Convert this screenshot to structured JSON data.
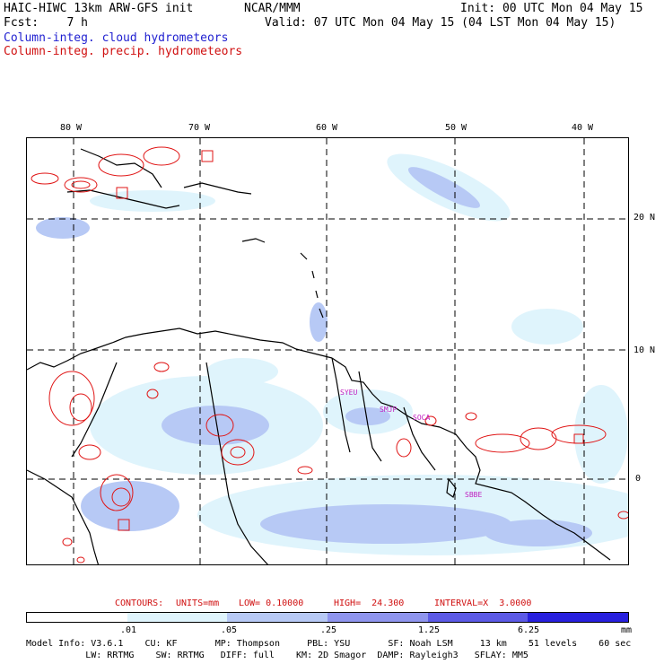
{
  "header": {
    "title_left": "HAIC-HIWC 13km ARW-GFS init",
    "title_mid": "NCAR/MMM",
    "init": "Init: 00 UTC Mon 04 May 15",
    "fcst": "Fcst:    7 h",
    "valid": "Valid: 07 UTC Mon 04 May 15 (04 LST Mon 04 May 15)",
    "legend_cloud": "Column-integ. cloud hydrometeors",
    "legend_precip": "Column-integ. precip. hydrometeors"
  },
  "map": {
    "lon_labels": [
      "80 W",
      "70 W",
      "60 W",
      "50 W",
      "40 W"
    ],
    "lat_labels": [
      "20 N",
      "10 N",
      "0"
    ],
    "stations": [
      "SYEU",
      "SMJP",
      "SOCA",
      "SBBE"
    ]
  },
  "contours": {
    "prefix": "CONTOURS:",
    "units": "UNITS=mm",
    "low": "LOW= 0.10000",
    "high": "HIGH=  24.300",
    "interval": "INTERVAL=X  3.0000"
  },
  "colorbar": {
    "colors": [
      "#ffffff",
      "#dff4fc",
      "#b7c9f5",
      "#8f95ee",
      "#5c5ae6",
      "#2820de"
    ],
    "labels": [
      ".01",
      ".05",
      ".25",
      "1.25",
      "6.25"
    ],
    "units": "mm"
  },
  "model_info": {
    "line1": "Model Info: V3.6.1    CU: KF       MP: Thompson     PBL: YSU       SF: Noah LSM     13 km    51 levels    60 sec",
    "line2": "           LW: RRTMG    SW: RRTMG   DIFF: full    KM: 2D Smagor  DAMP: Rayleigh3   SFLAY: MM5"
  }
}
